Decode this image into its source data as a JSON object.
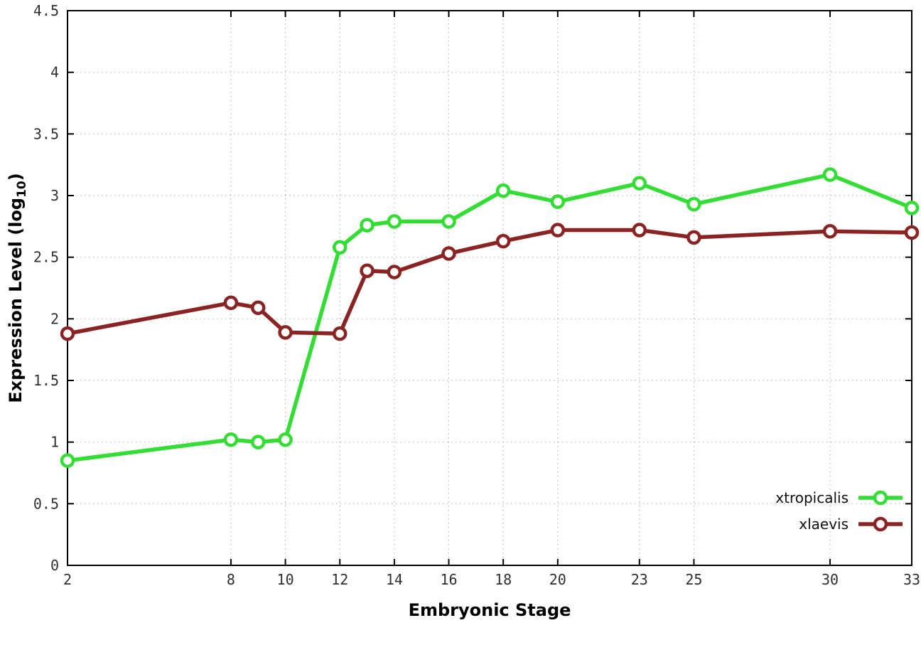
{
  "chart_data": {
    "type": "line",
    "title": "",
    "xlabel": "Embryonic Stage",
    "ylabel": "Expression Level (log10)",
    "ylabel_parts": {
      "main": "Expression Level (log",
      "sub": "10",
      "suffix": ")"
    },
    "x": [
      2,
      8,
      9,
      10,
      12,
      13,
      14,
      16,
      18,
      20,
      23,
      25,
      30,
      33
    ],
    "series": [
      {
        "name": "xtropicalis",
        "color": "#33dd33",
        "values": [
          0.85,
          1.02,
          1.0,
          1.02,
          2.58,
          2.76,
          2.79,
          2.79,
          3.04,
          2.95,
          3.1,
          2.93,
          3.17,
          2.9
        ]
      },
      {
        "name": "xlaevis",
        "color": "#8b2323",
        "values": [
          1.88,
          2.13,
          2.09,
          1.89,
          1.88,
          2.39,
          2.38,
          2.53,
          2.63,
          2.72,
          2.72,
          2.66,
          2.71,
          2.7
        ]
      }
    ],
    "xlim": [
      2,
      33
    ],
    "ylim": [
      0,
      4.5
    ],
    "xticks": [
      2,
      8,
      10,
      12,
      14,
      16,
      18,
      20,
      23,
      25,
      30,
      33
    ],
    "yticks": [
      0,
      0.5,
      1,
      1.5,
      2,
      2.5,
      3,
      3.5,
      4,
      4.5
    ],
    "grid": true,
    "marker": "open-circle",
    "legend_position": "inside bottom-right",
    "axis_color": "#000000",
    "grid_color": "#b5b5b5",
    "tick_label_color": "#303030"
  }
}
